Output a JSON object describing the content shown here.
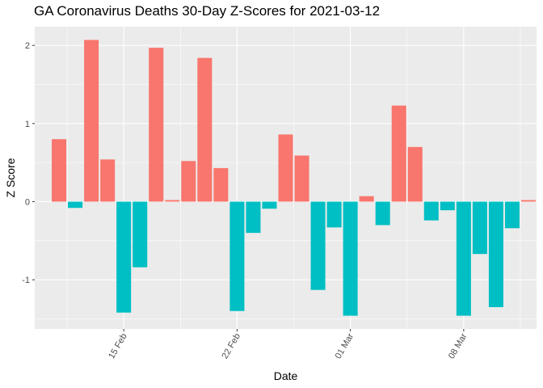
{
  "chart_data": {
    "type": "bar",
    "title": "GA Coronavirus Deaths 30-Day Z-Scores for 2021-03-12",
    "xlabel": "Date",
    "ylabel": "Z Score",
    "x_start": "2021-02-10",
    "dates": [
      "2021-02-11",
      "2021-02-12",
      "2021-02-13",
      "2021-02-14",
      "2021-02-15",
      "2021-02-16",
      "2021-02-17",
      "2021-02-18",
      "2021-02-19",
      "2021-02-20",
      "2021-02-21",
      "2021-02-22",
      "2021-02-23",
      "2021-02-24",
      "2021-02-25",
      "2021-02-26",
      "2021-02-27",
      "2021-02-28",
      "2021-03-01",
      "2021-03-02",
      "2021-03-03",
      "2021-03-04",
      "2021-03-05",
      "2021-03-06",
      "2021-03-07",
      "2021-03-08",
      "2021-03-09",
      "2021-03-10",
      "2021-03-11",
      "2021-03-12"
    ],
    "values": [
      0.8,
      -0.08,
      2.07,
      0.54,
      -1.42,
      -0.84,
      1.97,
      0.02,
      0.52,
      1.84,
      0.43,
      -1.4,
      -0.4,
      -0.09,
      0.86,
      0.59,
      -1.13,
      -0.33,
      -1.46,
      0.07,
      -0.3,
      1.23,
      0.7,
      -0.24,
      -0.11,
      -1.46,
      -0.67,
      -1.35,
      -0.34,
      0.02
    ],
    "ylim": [
      -1.63,
      2.24
    ],
    "yticks": [
      -1,
      0,
      1,
      2
    ],
    "ytick_labels": [
      "-1",
      "0",
      "1",
      "2"
    ],
    "xticks": [
      "2021-02-15",
      "2021-02-22",
      "2021-03-01",
      "2021-03-08"
    ],
    "xtick_labels": [
      "15 Feb",
      "22 Feb",
      "01 Mar",
      "08 Mar"
    ],
    "positive_color": "#F8766D",
    "negative_color": "#00BFC4",
    "panel_color": "#EBEBEB",
    "grid_color": "#FFFFFF",
    "legend": "none"
  }
}
